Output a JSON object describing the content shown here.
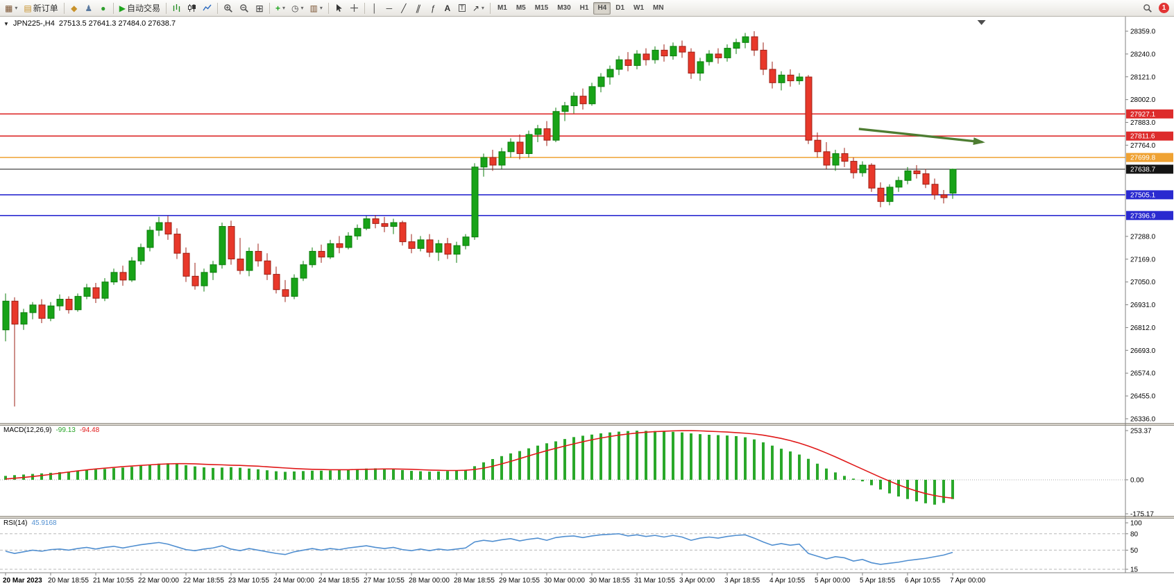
{
  "toolbar": {
    "new_order": "新订单",
    "autotrading": "自动交易",
    "timeframes": [
      "M1",
      "M5",
      "M15",
      "M30",
      "H1",
      "H4",
      "D1",
      "W1",
      "MN"
    ],
    "active_timeframe": "H4",
    "badge_count": "1"
  },
  "icons": {
    "new_chart": "▦",
    "new_order": "▤",
    "compass": "◆",
    "community": "♟",
    "globe": "●",
    "autotrading_play": "▶",
    "tile": "⊞",
    "indicators_plus": "+",
    "clock": "◷",
    "template": "▥",
    "dropdown": "▾",
    "vline": "│",
    "hline": "─",
    "trendline": "╱",
    "channel": "∥",
    "fibonacci": "ƒ",
    "text_tool": "A",
    "label_tool": "T",
    "arrow_tool": "↗",
    "collapse": "▼"
  },
  "symbol_info": {
    "title": "JPN225-,H4",
    "ohlc_text": "27513.5 27641.3 27484.0 27638.7"
  },
  "indicators": {
    "macd": {
      "name": "MACD(12,26,9)",
      "value_main": "-99.13",
      "value_signal": "-94.48"
    },
    "rsi": {
      "name": "RSI(14)",
      "value": "45.9168"
    }
  },
  "chart_data": {
    "type": "candlestick",
    "symbol": "JPN225-",
    "timeframe": "H4",
    "colors": {
      "bull": "#18a318",
      "bull_border": "#0c7c0c",
      "bear": "#e8382a",
      "bear_border": "#9c1f14",
      "macd_hist": "#2aa82a",
      "macd_signal": "#e01818",
      "rsi": "#4f8ed0",
      "arrow": "#4e7d32"
    },
    "main": {
      "ylim": [
        26314,
        28435
      ],
      "axis_values": [
        28359.0,
        28240.0,
        28121.0,
        28002.0,
        27883.0,
        27764.0,
        27288.0,
        27169.0,
        27050.0,
        26931.0,
        26812.0,
        26693.0,
        26574.0,
        26455.0,
        26336.0
      ],
      "lines": [
        {
          "price": 27927.1,
          "color": "#dd2c2c"
        },
        {
          "price": 27811.6,
          "color": "#dd2c2c"
        },
        {
          "price": 27699.8,
          "color": "#efa233"
        },
        {
          "price": 27638.7,
          "color": "#141414",
          "current": true
        },
        {
          "price": 27505.1,
          "color": "#2a2ad0"
        },
        {
          "price": 27396.9,
          "color": "#2a2ad0"
        }
      ],
      "arrow": {
        "from_bar": 94.6,
        "from_price": 27849,
        "to_bar": 108.3,
        "to_price": 27780
      },
      "shift_marker_bar": 108.2,
      "candles": [
        [
          26800,
          26990,
          26740,
          26950
        ],
        [
          26950,
          26970,
          26400,
          26830
        ],
        [
          26830,
          26910,
          26800,
          26890
        ],
        [
          26890,
          26945,
          26855,
          26930
        ],
        [
          26930,
          26960,
          26835,
          26860
        ],
        [
          26860,
          26945,
          26845,
          26925
        ],
        [
          26925,
          26985,
          26900,
          26960
        ],
        [
          26960,
          26975,
          26885,
          26905
        ],
        [
          26905,
          26990,
          26895,
          26975
        ],
        [
          26975,
          27040,
          26960,
          27020
        ],
        [
          27020,
          27045,
          26940,
          26965
        ],
        [
          26965,
          27070,
          26950,
          27050
        ],
        [
          27050,
          27120,
          27035,
          27100
        ],
        [
          27100,
          27135,
          27030,
          27060
        ],
        [
          27060,
          27180,
          27050,
          27160
        ],
        [
          27160,
          27250,
          27140,
          27230
        ],
        [
          27230,
          27340,
          27210,
          27320
        ],
        [
          27320,
          27390,
          27290,
          27360
        ],
        [
          27360,
          27395,
          27270,
          27300
        ],
        [
          27300,
          27330,
          27170,
          27200
        ],
        [
          27200,
          27230,
          27050,
          27080
        ],
        [
          27080,
          27150,
          27010,
          27030
        ],
        [
          27030,
          27120,
          27000,
          27100
        ],
        [
          27100,
          27160,
          27060,
          27140
        ],
        [
          27140,
          27360,
          27120,
          27340
        ],
        [
          27340,
          27370,
          27140,
          27170
        ],
        [
          27170,
          27280,
          27090,
          27110
        ],
        [
          27110,
          27230,
          27080,
          27210
        ],
        [
          27210,
          27250,
          27130,
          27160
        ],
        [
          27160,
          27200,
          27060,
          27090
        ],
        [
          27090,
          27130,
          26990,
          27010
        ],
        [
          27010,
          27060,
          26945,
          26975
        ],
        [
          26975,
          27090,
          26960,
          27070
        ],
        [
          27070,
          27160,
          27055,
          27140
        ],
        [
          27140,
          27230,
          27125,
          27210
        ],
        [
          27210,
          27245,
          27150,
          27180
        ],
        [
          27180,
          27270,
          27170,
          27250
        ],
        [
          27250,
          27290,
          27200,
          27230
        ],
        [
          27230,
          27310,
          27220,
          27290
        ],
        [
          27290,
          27350,
          27270,
          27330
        ],
        [
          27330,
          27395,
          27320,
          27380
        ],
        [
          27380,
          27400,
          27330,
          27355
        ],
        [
          27355,
          27390,
          27310,
          27340
        ],
        [
          27340,
          27380,
          27300,
          27360
        ],
        [
          27360,
          27370,
          27240,
          27260
        ],
        [
          27260,
          27300,
          27200,
          27225
        ],
        [
          27225,
          27290,
          27210,
          27270
        ],
        [
          27270,
          27300,
          27180,
          27205
        ],
        [
          27205,
          27270,
          27160,
          27250
        ],
        [
          27250,
          27280,
          27170,
          27195
        ],
        [
          27195,
          27260,
          27150,
          27240
        ],
        [
          27240,
          27300,
          27220,
          27285
        ],
        [
          27285,
          27670,
          27270,
          27650
        ],
        [
          27650,
          27720,
          27600,
          27700
        ],
        [
          27700,
          27740,
          27630,
          27660
        ],
        [
          27660,
          27750,
          27640,
          27730
        ],
        [
          27730,
          27800,
          27700,
          27780
        ],
        [
          27780,
          27820,
          27690,
          27720
        ],
        [
          27720,
          27840,
          27700,
          27820
        ],
        [
          27820,
          27870,
          27780,
          27850
        ],
        [
          27850,
          27890,
          27760,
          27790
        ],
        [
          27790,
          27960,
          27780,
          27940
        ],
        [
          27940,
          27990,
          27890,
          27970
        ],
        [
          27970,
          28040,
          27930,
          28020
        ],
        [
          28020,
          28060,
          27950,
          27980
        ],
        [
          27980,
          28090,
          27970,
          28070
        ],
        [
          28070,
          28140,
          28040,
          28120
        ],
        [
          28120,
          28180,
          28080,
          28160
        ],
        [
          28160,
          28230,
          28130,
          28210
        ],
        [
          28210,
          28250,
          28150,
          28180
        ],
        [
          28180,
          28260,
          28160,
          28240
        ],
        [
          28240,
          28270,
          28180,
          28210
        ],
        [
          28210,
          28280,
          28190,
          28260
        ],
        [
          28260,
          28290,
          28200,
          28230
        ],
        [
          28230,
          28300,
          28210,
          28280
        ],
        [
          28280,
          28310,
          28220,
          28250
        ],
        [
          28250,
          28270,
          28110,
          28140
        ],
        [
          28140,
          28220,
          28100,
          28200
        ],
        [
          28200,
          28260,
          28180,
          28240
        ],
        [
          28240,
          28270,
          28190,
          28220
        ],
        [
          28220,
          28290,
          28200,
          28270
        ],
        [
          28270,
          28320,
          28240,
          28300
        ],
        [
          28300,
          28350,
          28270,
          28330
        ],
        [
          28330,
          28359,
          28230,
          28260
        ],
        [
          28260,
          28300,
          28130,
          28160
        ],
        [
          28160,
          28200,
          28060,
          28090
        ],
        [
          28090,
          28150,
          28050,
          28130
        ],
        [
          28130,
          28160,
          28070,
          28100
        ],
        [
          28100,
          28140,
          28080,
          28120
        ],
        [
          28120,
          28130,
          27770,
          27790
        ],
        [
          27790,
          27830,
          27700,
          27730
        ],
        [
          27730,
          27780,
          27640,
          27660
        ],
        [
          27660,
          27740,
          27630,
          27720
        ],
        [
          27720,
          27750,
          27650,
          27680
        ],
        [
          27680,
          27700,
          27590,
          27620
        ],
        [
          27620,
          27680,
          27600,
          27660
        ],
        [
          27660,
          27670,
          27520,
          27540
        ],
        [
          27540,
          27570,
          27440,
          27470
        ],
        [
          27470,
          27560,
          27450,
          27545
        ],
        [
          27545,
          27600,
          27520,
          27580
        ],
        [
          27580,
          27650,
          27560,
          27630
        ],
        [
          27630,
          27660,
          27590,
          27615
        ],
        [
          27615,
          27640,
          27540,
          27560
        ],
        [
          27560,
          27590,
          27480,
          27505
        ],
        [
          27505,
          27530,
          27460,
          27490
        ],
        [
          27513.5,
          27641.3,
          27484.0,
          27638.7
        ]
      ]
    },
    "macd": {
      "params": "12,26,9",
      "value_main": -99.13,
      "value_signal": -94.48,
      "axis_values": [
        253.37,
        0,
        -175.17
      ],
      "histogram": [
        20,
        24,
        27,
        30,
        33,
        36,
        39,
        42,
        46,
        50,
        53,
        56,
        60,
        63,
        67,
        72,
        78,
        83,
        85,
        82,
        75,
        69,
        64,
        61,
        63,
        65,
        62,
        58,
        54,
        49,
        44,
        41,
        43,
        45,
        47,
        47,
        48,
        50,
        52,
        55,
        58,
        59,
        57,
        55,
        50,
        46,
        44,
        42,
        43,
        45,
        47,
        52,
        70,
        90,
        107,
        122,
        136,
        148,
        162,
        176,
        188,
        198,
        210,
        220,
        227,
        233,
        239,
        244,
        248,
        251,
        253,
        252,
        251,
        249,
        247,
        244,
        239,
        235,
        232,
        230,
        228,
        225,
        219,
        208,
        193,
        176,
        160,
        146,
        130,
        108,
        83,
        58,
        38,
        20,
        6,
        -8,
        -28,
        -50,
        -70,
        -86,
        -99,
        -111,
        -121,
        -128,
        -119,
        -99.13
      ],
      "signal": [
        4,
        8,
        12,
        17,
        22,
        28,
        34,
        40,
        46,
        51,
        56,
        60,
        64,
        68,
        71,
        74,
        77,
        80,
        82,
        83,
        83,
        82,
        80,
        78,
        77,
        75,
        74,
        72,
        70,
        67,
        64,
        61,
        58,
        56,
        54,
        53,
        52,
        52,
        52,
        53,
        54,
        55,
        56,
        56,
        55,
        54,
        52,
        50,
        49,
        48,
        48,
        49,
        53,
        60,
        70,
        82,
        95,
        109,
        123,
        137,
        150,
        162,
        174,
        185,
        196,
        206,
        215,
        223,
        230,
        236,
        241,
        245,
        248,
        250,
        252,
        253,
        253,
        252,
        250,
        248,
        246,
        243,
        240,
        236,
        230,
        222,
        213,
        202,
        189,
        174,
        157,
        138,
        118,
        97,
        76,
        55,
        34,
        13,
        -7,
        -26,
        -43,
        -58,
        -71,
        -81,
        -89,
        -94.48
      ]
    },
    "rsi": {
      "period": 14,
      "value": 45.9168,
      "axis_values": [
        100,
        80,
        50,
        15
      ],
      "levels": [
        80,
        50,
        15
      ],
      "values": [
        48,
        44,
        47,
        50,
        48,
        51,
        52,
        50,
        53,
        55,
        52,
        55,
        57,
        54,
        57,
        60,
        62,
        64,
        61,
        56,
        51,
        49,
        52,
        54,
        58,
        52,
        49,
        53,
        50,
        47,
        44,
        42,
        47,
        50,
        53,
        50,
        53,
        51,
        54,
        56,
        58,
        55,
        53,
        55,
        51,
        49,
        52,
        49,
        52,
        50,
        52,
        54,
        65,
        68,
        66,
        69,
        71,
        67,
        70,
        72,
        68,
        73,
        75,
        76,
        73,
        76,
        78,
        79,
        80,
        76,
        78,
        75,
        77,
        74,
        77,
        74,
        68,
        72,
        74,
        72,
        75,
        77,
        78,
        72,
        65,
        59,
        62,
        59,
        61,
        44,
        39,
        34,
        38,
        36,
        30,
        33,
        27,
        24,
        26,
        28,
        31,
        33,
        35,
        38,
        41,
        45.92
      ]
    },
    "time_labels": [
      "20 Mar 2023",
      "20 Mar 18:55",
      "21 Mar 10:55",
      "22 Mar 00:00",
      "22 Mar 18:55",
      "23 Mar 10:55",
      "24 Mar 00:00",
      "24 Mar 18:55",
      "27 Mar 10:55",
      "28 Mar 00:00",
      "28 Mar 18:55",
      "29 Mar 10:55",
      "30 Mar 00:00",
      "30 Mar 18:55",
      "31 Mar 10:55",
      "3 Apr 00:00",
      "3 Apr 18:55",
      "4 Apr 10:55",
      "5 Apr 00:00",
      "5 Apr 18:55",
      "6 Apr 10:55",
      "7 Apr 00:00"
    ],
    "label_every": 5
  }
}
